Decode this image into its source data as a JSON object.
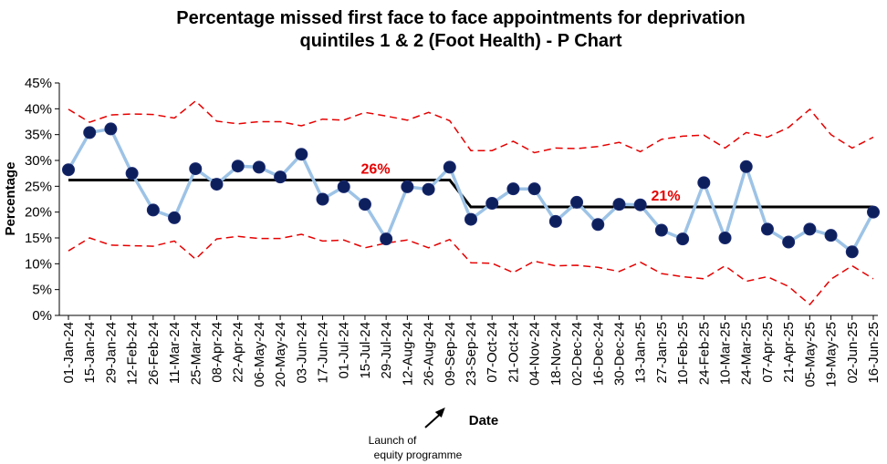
{
  "chart_data": {
    "type": "line",
    "title_line1": "Percentage missed first face to face appointments for deprivation",
    "title_line2": "quintiles 1 & 2 (Foot Health) - P Chart",
    "xlabel": "Date",
    "ylabel": "Percentage",
    "ylim": [
      0,
      45
    ],
    "yticks": [
      "0%",
      "5%",
      "10%",
      "15%",
      "20%",
      "25%",
      "30%",
      "35%",
      "40%",
      "45%"
    ],
    "categories": [
      "01-Jan-24",
      "15-Jan-24",
      "29-Jan-24",
      "12-Feb-24",
      "26-Feb-24",
      "11-Mar-24",
      "25-Mar-24",
      "08-Apr-24",
      "22-Apr-24",
      "06-May-24",
      "20-May-24",
      "03-Jun-24",
      "17-Jun-24",
      "01-Jul-24",
      "15-Jul-24",
      "29-Jul-24",
      "12-Aug-24",
      "26-Aug-24",
      "09-Sep-24",
      "23-Sep-24",
      "07-Oct-24",
      "21-Oct-24",
      "04-Nov-24",
      "18-Nov-24",
      "02-Dec-24",
      "16-Dec-24",
      "30-Dec-24",
      "13-Jan-25",
      "27-Jan-25",
      "10-Feb-25",
      "24-Feb-25",
      "10-Mar-25",
      "24-Mar-25",
      "07-Apr-25",
      "21-Apr-25",
      "05-May-25",
      "19-May-25",
      "02-Jun-25",
      "16-Jun-25"
    ],
    "series": [
      {
        "values": [
          28.2,
          35.4,
          36.1,
          27.5,
          20.4,
          18.9,
          28.4,
          25.4,
          28.9,
          28.7,
          26.8,
          31.2,
          22.5,
          24.9,
          21.5,
          14.8,
          24.9,
          24.4,
          28.7,
          18.6,
          21.7,
          24.5,
          24.5,
          18.2,
          21.9,
          17.6,
          21.5,
          21.4,
          16.5,
          14.8,
          25.7,
          15.0,
          28.8,
          16.7,
          14.2,
          16.7,
          15.5,
          12.3,
          20.0
        ]
      },
      {
        "values": [
          26.2,
          26.2,
          26.2,
          26.2,
          26.2,
          26.2,
          26.2,
          26.2,
          26.2,
          26.2,
          26.2,
          26.2,
          26.2,
          26.2,
          26.2,
          26.2,
          26.2,
          26.2,
          26.2,
          21.0,
          21.0,
          21.0,
          21.0,
          21.0,
          21.0,
          21.0,
          21.0,
          21.0,
          21.0,
          21.0,
          21.0,
          21.0,
          21.0,
          21.0,
          21.0,
          21.0,
          21.0,
          21.0,
          21.0
        ]
      },
      {
        "values": [
          39.9,
          37.4,
          38.8,
          39.0,
          38.9,
          38.2,
          41.5,
          37.6,
          37.1,
          37.5,
          37.5,
          36.7,
          38.0,
          37.8,
          39.3,
          38.6,
          37.8,
          39.3,
          37.7,
          31.9,
          31.9,
          33.7,
          31.5,
          32.4,
          32.3,
          32.7,
          33.5,
          31.7,
          34.1,
          34.7,
          34.9,
          32.4,
          35.4,
          34.5,
          36.4,
          39.9,
          35.0,
          32.4,
          34.5
        ]
      },
      {
        "values": [
          12.5,
          15.0,
          13.6,
          13.5,
          13.4,
          14.4,
          10.9,
          14.8,
          15.3,
          14.9,
          14.9,
          15.7,
          14.4,
          14.6,
          13.1,
          14.0,
          14.6,
          13.1,
          14.7,
          10.2,
          10.1,
          8.3,
          10.5,
          9.6,
          9.7,
          9.3,
          8.5,
          10.3,
          8.1,
          7.5,
          7.1,
          9.6,
          6.6,
          7.5,
          5.6,
          2.1,
          7.0,
          9.6,
          7.1
        ]
      }
    ],
    "mean_labels": [
      {
        "text": "26%",
        "anchor_index": 14.5,
        "value": 26.2
      },
      {
        "text": "21%",
        "anchor_index": 28.2,
        "value": 21.0
      }
    ],
    "annotation": {
      "line1": "Launch of",
      "line2": "equity programme",
      "target_index": 18
    },
    "colors": {
      "data_line": "#9DC3E6",
      "marker": "#0D1F5C",
      "mean_line": "#000000",
      "limits": "#E60000",
      "mean_label": "#E60000"
    },
    "grid": false,
    "legend": "none"
  }
}
